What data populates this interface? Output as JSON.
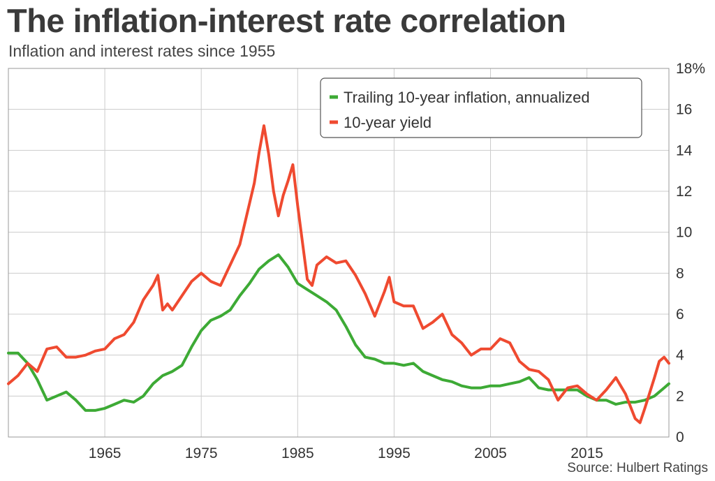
{
  "title": "The inflation-interest rate correlation",
  "subtitle": "Inflation and interest rates since 1955",
  "source": "Source: Hulbert Ratings",
  "colors": {
    "inflation": "#3daa35",
    "yield": "#ef4a30",
    "grid": "#cccccc"
  },
  "chart_data": {
    "type": "line",
    "x_ticks": [
      1965,
      1975,
      1985,
      1995,
      2005,
      2015
    ],
    "y_ticks": [
      0,
      2,
      4,
      6,
      8,
      10,
      12,
      14,
      16,
      18
    ],
    "y_tick_labels": [
      "0",
      "2",
      "4",
      "6",
      "8",
      "10",
      "12",
      "14",
      "16",
      "18%"
    ],
    "xlim": [
      1955,
      2023.5
    ],
    "ylim": [
      0,
      18
    ],
    "y_axis_side": "right",
    "grid": true,
    "legend_position": "top-right",
    "series": [
      {
        "name": "Trailing 10-year inflation, annualized",
        "color": "#3daa35",
        "x": [
          1955,
          1956,
          1957,
          1958,
          1959,
          1960,
          1961,
          1962,
          1963,
          1964,
          1965,
          1966,
          1967,
          1968,
          1969,
          1970,
          1971,
          1972,
          1973,
          1974,
          1975,
          1976,
          1977,
          1978,
          1979,
          1980,
          1981,
          1982,
          1983,
          1984,
          1985,
          1986,
          1987,
          1988,
          1989,
          1990,
          1991,
          1992,
          1993,
          1994,
          1995,
          1996,
          1997,
          1998,
          1999,
          2000,
          2001,
          2002,
          2003,
          2004,
          2005,
          2006,
          2007,
          2008,
          2009,
          2010,
          2011,
          2012,
          2013,
          2014,
          2015,
          2016,
          2017,
          2018,
          2019,
          2020,
          2021,
          2022,
          2023,
          2023.5
        ],
        "values": [
          4.1,
          4.1,
          3.6,
          2.8,
          1.8,
          2.0,
          2.2,
          1.8,
          1.3,
          1.3,
          1.4,
          1.6,
          1.8,
          1.7,
          2.0,
          2.6,
          3.0,
          3.2,
          3.5,
          4.4,
          5.2,
          5.7,
          5.9,
          6.2,
          6.9,
          7.5,
          8.2,
          8.6,
          8.9,
          8.3,
          7.5,
          7.2,
          6.9,
          6.6,
          6.2,
          5.4,
          4.5,
          3.9,
          3.8,
          3.6,
          3.6,
          3.5,
          3.6,
          3.2,
          3.0,
          2.8,
          2.7,
          2.5,
          2.4,
          2.4,
          2.5,
          2.5,
          2.6,
          2.7,
          2.9,
          2.4,
          2.3,
          2.3,
          2.3,
          2.3,
          2.0,
          1.8,
          1.8,
          1.6,
          1.7,
          1.7,
          1.8,
          2.0,
          2.4,
          2.6
        ]
      },
      {
        "name": "10-year yield",
        "color": "#ef4a30",
        "x": [
          1955,
          1956,
          1957,
          1958,
          1959,
          1960,
          1961,
          1962,
          1963,
          1964,
          1965,
          1966,
          1967,
          1968,
          1969,
          1970,
          1970.5,
          1971,
          1971.5,
          1972,
          1973,
          1974,
          1975,
          1976,
          1977,
          1978,
          1979,
          1980,
          1980.5,
          1981,
          1981.5,
          1982,
          1982.5,
          1983,
          1983.5,
          1984,
          1984.5,
          1985,
          1986,
          1986.5,
          1987,
          1988,
          1989,
          1990,
          1991,
          1992,
          1993,
          1994,
          1994.5,
          1995,
          1996,
          1997,
          1998,
          1999,
          2000,
          2001,
          2002,
          2003,
          2004,
          2005,
          2006,
          2007,
          2008,
          2009,
          2010,
          2011,
          2012,
          2013,
          2014,
          2015,
          2016,
          2017,
          2018,
          2019,
          2020,
          2020.5,
          2021,
          2022,
          2022.5,
          2023,
          2023.5
        ],
        "values": [
          2.6,
          3.0,
          3.6,
          3.2,
          4.3,
          4.4,
          3.9,
          3.9,
          4.0,
          4.2,
          4.3,
          4.8,
          5.0,
          5.6,
          6.7,
          7.4,
          7.9,
          6.2,
          6.5,
          6.2,
          6.9,
          7.6,
          8.0,
          7.6,
          7.4,
          8.4,
          9.4,
          11.4,
          12.4,
          13.9,
          15.2,
          13.8,
          12.0,
          10.8,
          11.8,
          12.5,
          13.3,
          11.3,
          7.7,
          7.4,
          8.4,
          8.8,
          8.5,
          8.6,
          7.9,
          7.0,
          5.9,
          7.1,
          7.8,
          6.6,
          6.4,
          6.4,
          5.3,
          5.6,
          6.0,
          5.0,
          4.6,
          4.0,
          4.3,
          4.3,
          4.8,
          4.6,
          3.7,
          3.3,
          3.2,
          2.8,
          1.8,
          2.4,
          2.5,
          2.1,
          1.8,
          2.3,
          2.9,
          2.1,
          0.9,
          0.7,
          1.4,
          2.9,
          3.7,
          3.9,
          3.6
        ]
      }
    ]
  }
}
